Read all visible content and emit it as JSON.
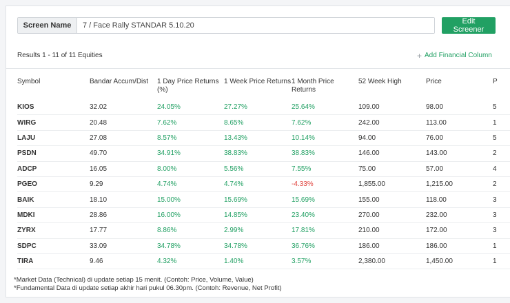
{
  "screen_name_label": "Screen Name",
  "screen_name_value": "7 / Face Rally STANDAR 5.10.20",
  "edit_button": "Edit Screener",
  "results_text": "Results 1 - 11 of 11 Equities",
  "add_column_text": "Add Financial Column",
  "columns": [
    "Symbol",
    "Bandar Accum/Dist",
    "1 Day Price Returns (%)",
    "1 Week Price Returns",
    "1 Month Price Returns",
    "52 Week High",
    "Price",
    "P"
  ],
  "rows": [
    {
      "symbol": "KIOS",
      "bandar": "32.02",
      "day": "24.05%",
      "week": "27.27%",
      "month": "25.64%",
      "high52": "109.00",
      "price": "98.00",
      "next": "5"
    },
    {
      "symbol": "WIRG",
      "bandar": "20.48",
      "day": "7.62%",
      "week": "8.65%",
      "month": "7.62%",
      "high52": "242.00",
      "price": "113.00",
      "next": "1"
    },
    {
      "symbol": "LAJU",
      "bandar": "27.08",
      "day": "8.57%",
      "week": "13.43%",
      "month": "10.14%",
      "high52": "94.00",
      "price": "76.00",
      "next": "5"
    },
    {
      "symbol": "PSDN",
      "bandar": "49.70",
      "day": "34.91%",
      "week": "38.83%",
      "month": "38.83%",
      "high52": "146.00",
      "price": "143.00",
      "next": "2"
    },
    {
      "symbol": "ADCP",
      "bandar": "16.05",
      "day": "8.00%",
      "week": "5.56%",
      "month": "7.55%",
      "high52": "75.00",
      "price": "57.00",
      "next": "4"
    },
    {
      "symbol": "PGEO",
      "bandar": "9.29",
      "day": "4.74%",
      "week": "4.74%",
      "month": "-4.33%",
      "high52": "1,855.00",
      "price": "1,215.00",
      "next": "2"
    },
    {
      "symbol": "BAIK",
      "bandar": "18.10",
      "day": "15.00%",
      "week": "15.69%",
      "month": "15.69%",
      "high52": "155.00",
      "price": "118.00",
      "next": "3"
    },
    {
      "symbol": "MDKI",
      "bandar": "28.86",
      "day": "16.00%",
      "week": "14.85%",
      "month": "23.40%",
      "high52": "270.00",
      "price": "232.00",
      "next": "3"
    },
    {
      "symbol": "ZYRX",
      "bandar": "17.77",
      "day": "8.86%",
      "week": "2.99%",
      "month": "17.81%",
      "high52": "210.00",
      "price": "172.00",
      "next": "3"
    },
    {
      "symbol": "SDPC",
      "bandar": "33.09",
      "day": "34.78%",
      "week": "34.78%",
      "month": "36.76%",
      "high52": "186.00",
      "price": "186.00",
      "next": "1"
    },
    {
      "symbol": "TIRA",
      "bandar": "9.46",
      "day": "4.32%",
      "week": "1.40%",
      "month": "3.57%",
      "high52": "2,380.00",
      "price": "1,450.00",
      "next": "1"
    }
  ],
  "notes": [
    "*Market Data (Technical) di update setiap 15 menit. (Contoh: Price, Volume, Value)",
    "*Fundamental Data di update setiap akhir hari pukul 06.30pm. (Contoh: Revenue, Net Profit)"
  ],
  "colors": {
    "positive": "#21a063",
    "negative": "#e0413b",
    "button": "#21a063"
  },
  "icons": {
    "add_column": "plus-icon"
  }
}
